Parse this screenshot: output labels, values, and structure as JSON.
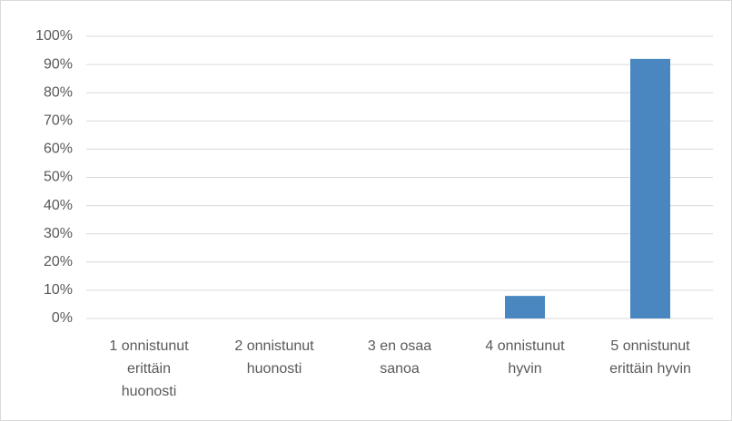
{
  "chart_data": {
    "type": "bar",
    "categories": [
      "1 onnistunut erittäin huonosti",
      "2 onnistunut huonosti",
      "3 en osaa sanoa",
      "4 onnistunut hyvin",
      "5 onnistunut erittäin hyvin"
    ],
    "values": [
      0,
      0,
      0,
      8,
      92
    ],
    "color": "#4a87c0",
    "ylim": [
      0,
      100
    ],
    "yticks": [
      {
        "value": 0,
        "label": "0%"
      },
      {
        "value": 10,
        "label": "10%"
      },
      {
        "value": 20,
        "label": "20%"
      },
      {
        "value": 30,
        "label": "30%"
      },
      {
        "value": 40,
        "label": "40%"
      },
      {
        "value": 50,
        "label": "50%"
      },
      {
        "value": 60,
        "label": "60%"
      },
      {
        "value": 70,
        "label": "70%"
      },
      {
        "value": 80,
        "label": "80%"
      },
      {
        "value": 90,
        "label": "90%"
      },
      {
        "value": 100,
        "label": "100%"
      }
    ],
    "grid": true
  }
}
